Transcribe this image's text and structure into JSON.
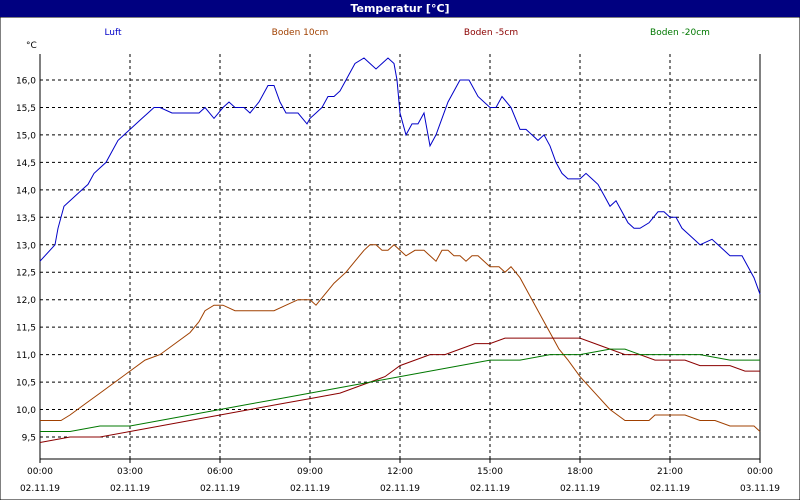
{
  "window": {
    "title": "Temperatur [°C]"
  },
  "chart_data": {
    "type": "line",
    "title": "Temperatur [°C]",
    "ylabel": "°C",
    "xlabel": "",
    "ylim": [
      9.2,
      16.6
    ],
    "xlim": [
      0,
      24
    ],
    "grid": true,
    "legend_position": "top",
    "yticks": [
      "9,5",
      "10,0",
      "10,5",
      "11,0",
      "11,5",
      "12,0",
      "12,5",
      "13,0",
      "13,5",
      "14,0",
      "14,5",
      "15,0",
      "15,5",
      "16,0"
    ],
    "ytick_values": [
      9.5,
      10,
      10.5,
      11,
      11.5,
      12,
      12.5,
      13,
      13.5,
      14,
      14.5,
      15,
      15.5,
      16
    ],
    "xticks": [
      {
        "x": 0,
        "time": "00:00",
        "date": "02.11.19"
      },
      {
        "x": 3,
        "time": "03:00",
        "date": "02.11.19"
      },
      {
        "x": 6,
        "time": "06:00",
        "date": "02.11.19"
      },
      {
        "x": 9,
        "time": "09:00",
        "date": "02.11.19"
      },
      {
        "x": 12,
        "time": "12:00",
        "date": "02.11.19"
      },
      {
        "x": 15,
        "time": "15:00",
        "date": "02.11.19"
      },
      {
        "x": 18,
        "time": "18:00",
        "date": "02.11.19"
      },
      {
        "x": 21,
        "time": "21:00",
        "date": "02.11.19"
      },
      {
        "x": 24,
        "time": "00:00",
        "date": "03.11.19"
      }
    ],
    "series": [
      {
        "name": "Luft",
        "color": "#0000c8",
        "x": [
          0,
          0.5,
          0.6,
          0.8,
          1.0,
          1.2,
          1.4,
          1.6,
          1.8,
          2.0,
          2.2,
          2.4,
          2.6,
          2.8,
          3.0,
          3.2,
          3.4,
          3.6,
          3.8,
          4.0,
          4.4,
          4.6,
          4.8,
          5.0,
          5.3,
          5.5,
          5.8,
          6.1,
          6.3,
          6.5,
          6.8,
          7.0,
          7.3,
          7.6,
          7.8,
          8.0,
          8.2,
          8.4,
          8.6,
          8.9,
          9.0,
          9.2,
          9.4,
          9.6,
          9.8,
          10.0,
          10.2,
          10.5,
          10.8,
          11.0,
          11.2,
          11.4,
          11.6,
          11.8,
          11.9,
          12.0,
          12.2,
          12.4,
          12.6,
          12.8,
          13.0,
          13.2,
          13.4,
          13.6,
          13.8,
          14.0,
          14.3,
          14.6,
          15.0,
          15.2,
          15.4,
          15.7,
          16.0,
          16.2,
          16.4,
          16.6,
          16.8,
          17.0,
          17.2,
          17.4,
          17.6,
          18.0,
          18.2,
          18.4,
          18.6,
          18.8,
          19.0,
          19.2,
          19.4,
          19.6,
          19.8,
          20.0,
          20.3,
          20.6,
          20.8,
          21.0,
          21.2,
          21.4,
          21.6,
          22.0,
          22.4,
          22.6,
          22.8,
          23.0,
          23.2,
          23.4,
          23.6,
          23.8,
          24.0
        ],
        "values": [
          12.7,
          13.0,
          13.3,
          13.7,
          13.8,
          13.9,
          14.0,
          14.1,
          14.3,
          14.4,
          14.5,
          14.7,
          14.9,
          15.0,
          15.1,
          15.2,
          15.3,
          15.4,
          15.5,
          15.5,
          15.4,
          15.4,
          15.4,
          15.4,
          15.4,
          15.5,
          15.3,
          15.5,
          15.6,
          15.5,
          15.5,
          15.4,
          15.6,
          15.9,
          15.9,
          15.6,
          15.4,
          15.4,
          15.4,
          15.2,
          15.3,
          15.4,
          15.5,
          15.7,
          15.7,
          15.8,
          16.0,
          16.3,
          16.4,
          16.3,
          16.2,
          16.3,
          16.4,
          16.3,
          16.0,
          15.4,
          15.0,
          15.2,
          15.2,
          15.4,
          14.8,
          15.0,
          15.3,
          15.6,
          15.8,
          16.0,
          16.0,
          15.7,
          15.5,
          15.5,
          15.7,
          15.5,
          15.1,
          15.1,
          15.0,
          14.9,
          15.0,
          14.8,
          14.5,
          14.3,
          14.2,
          14.2,
          14.3,
          14.2,
          14.1,
          13.9,
          13.7,
          13.8,
          13.6,
          13.4,
          13.3,
          13.3,
          13.4,
          13.6,
          13.6,
          13.5,
          13.5,
          13.3,
          13.2,
          13.0,
          13.1,
          13.0,
          12.9,
          12.8,
          12.8,
          12.8,
          12.6,
          12.4,
          12.1
        ]
      },
      {
        "name": "Boden 10cm",
        "color": "#a04000",
        "x": [
          0,
          0.7,
          1.0,
          1.5,
          2.0,
          2.5,
          3.0,
          3.5,
          4.0,
          4.5,
          5.0,
          5.3,
          5.5,
          5.8,
          6.1,
          6.5,
          7.0,
          7.5,
          7.8,
          8.2,
          8.6,
          9.0,
          9.2,
          9.5,
          9.8,
          10.2,
          10.5,
          10.8,
          11.0,
          11.2,
          11.4,
          11.6,
          11.8,
          12.0,
          12.2,
          12.5,
          12.8,
          13.0,
          13.2,
          13.4,
          13.6,
          13.8,
          14.0,
          14.2,
          14.4,
          14.6,
          14.8,
          15.0,
          15.3,
          15.5,
          15.7,
          16.0,
          16.2,
          16.5,
          16.8,
          17.0,
          17.3,
          17.6,
          18.0,
          18.5,
          19.0,
          19.5,
          19.8,
          20.0,
          20.3,
          20.5,
          21.0,
          21.5,
          22.0,
          22.5,
          23.0,
          23.5,
          23.8,
          24.0
        ],
        "values": [
          9.8,
          9.8,
          9.9,
          10.1,
          10.3,
          10.5,
          10.7,
          10.9,
          11.0,
          11.2,
          11.4,
          11.6,
          11.8,
          11.9,
          11.9,
          11.8,
          11.8,
          11.8,
          11.8,
          11.9,
          12.0,
          12.0,
          11.9,
          12.1,
          12.3,
          12.5,
          12.7,
          12.9,
          13.0,
          13.0,
          12.9,
          12.9,
          13.0,
          12.9,
          12.8,
          12.9,
          12.9,
          12.8,
          12.7,
          12.9,
          12.9,
          12.8,
          12.8,
          12.7,
          12.8,
          12.8,
          12.7,
          12.6,
          12.6,
          12.5,
          12.6,
          12.4,
          12.2,
          11.9,
          11.6,
          11.4,
          11.1,
          10.9,
          10.6,
          10.3,
          10.0,
          9.8,
          9.8,
          9.8,
          9.8,
          9.9,
          9.9,
          9.9,
          9.8,
          9.8,
          9.7,
          9.7,
          9.7,
          9.6
        ]
      },
      {
        "name": "Boden -5cm",
        "color": "#8b0000",
        "x": [
          0,
          1.0,
          2.0,
          3.0,
          4.0,
          5.0,
          6.0,
          7.0,
          8.0,
          9.0,
          10.0,
          10.5,
          11.0,
          11.5,
          12.0,
          12.5,
          13.0,
          13.5,
          14.0,
          14.5,
          15.0,
          15.5,
          16.0,
          16.5,
          17.0,
          17.5,
          18.0,
          18.5,
          19.0,
          19.5,
          20.0,
          20.5,
          21.0,
          21.5,
          22.0,
          22.5,
          23.0,
          23.5,
          24.0
        ],
        "values": [
          9.4,
          9.5,
          9.5,
          9.6,
          9.7,
          9.8,
          9.9,
          10.0,
          10.1,
          10.2,
          10.3,
          10.4,
          10.5,
          10.6,
          10.8,
          10.9,
          11.0,
          11.0,
          11.1,
          11.2,
          11.2,
          11.3,
          11.3,
          11.3,
          11.3,
          11.3,
          11.3,
          11.2,
          11.1,
          11.0,
          11.0,
          10.9,
          10.9,
          10.9,
          10.8,
          10.8,
          10.8,
          10.7,
          10.7
        ]
      },
      {
        "name": "Boden -20cm",
        "color": "#007800",
        "x": [
          0,
          1.0,
          2.0,
          3.0,
          4.0,
          5.0,
          6.0,
          7.0,
          8.0,
          9.0,
          10.0,
          11.0,
          12.0,
          13.0,
          14.0,
          15.0,
          16.0,
          17.0,
          18.0,
          19.0,
          19.5,
          20.0,
          21.0,
          22.0,
          23.0,
          24.0
        ],
        "values": [
          9.6,
          9.6,
          9.7,
          9.7,
          9.8,
          9.9,
          10.0,
          10.1,
          10.2,
          10.3,
          10.4,
          10.5,
          10.6,
          10.7,
          10.8,
          10.9,
          10.9,
          11.0,
          11.0,
          11.1,
          11.1,
          11.0,
          11.0,
          11.0,
          10.9,
          10.9
        ]
      }
    ]
  }
}
